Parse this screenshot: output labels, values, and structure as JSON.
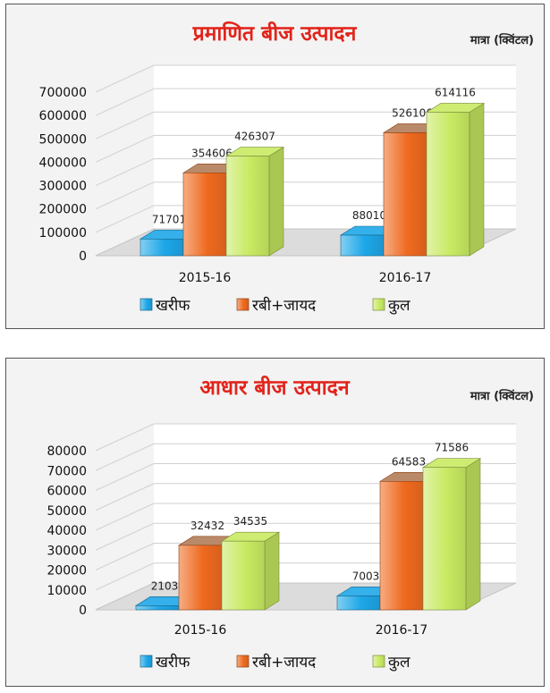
{
  "colors": {
    "kharif": "#1ea7e8",
    "rabi": "#ef6a1f",
    "total": "#c8ea62",
    "title": "#e2231a"
  },
  "chart_data": [
    {
      "type": "bar",
      "title": "प्रमाणित बीज उत्पादन",
      "unit_label": "मात्रा (क्विंटल)",
      "categories": [
        "2015-16",
        "2016-17"
      ],
      "series": [
        {
          "name": "खरीफ",
          "values": [
            71701,
            88010
          ]
        },
        {
          "name": "रबी+जायद",
          "values": [
            354606,
            526106
          ]
        },
        {
          "name": "कुल",
          "values": [
            426307,
            614116
          ]
        }
      ],
      "yticks": [
        0,
        100000,
        200000,
        300000,
        400000,
        500000,
        600000,
        700000
      ],
      "ylim": [
        0,
        700000
      ],
      "legend_position": "bottom"
    },
    {
      "type": "bar",
      "title": "आधार बीज उत्पादन",
      "unit_label": "मात्रा (क्विंटल)",
      "categories": [
        "2015-16",
        "2016-17"
      ],
      "series": [
        {
          "name": "खरीफ",
          "values": [
            2103,
            7003
          ]
        },
        {
          "name": "रबी+जायद",
          "values": [
            32432,
            64583
          ]
        },
        {
          "name": "कुल",
          "values": [
            34535,
            71586
          ]
        }
      ],
      "yticks": [
        0,
        10000,
        20000,
        30000,
        40000,
        50000,
        60000,
        70000,
        80000
      ],
      "ylim": [
        0,
        80000
      ],
      "legend_position": "bottom"
    }
  ]
}
